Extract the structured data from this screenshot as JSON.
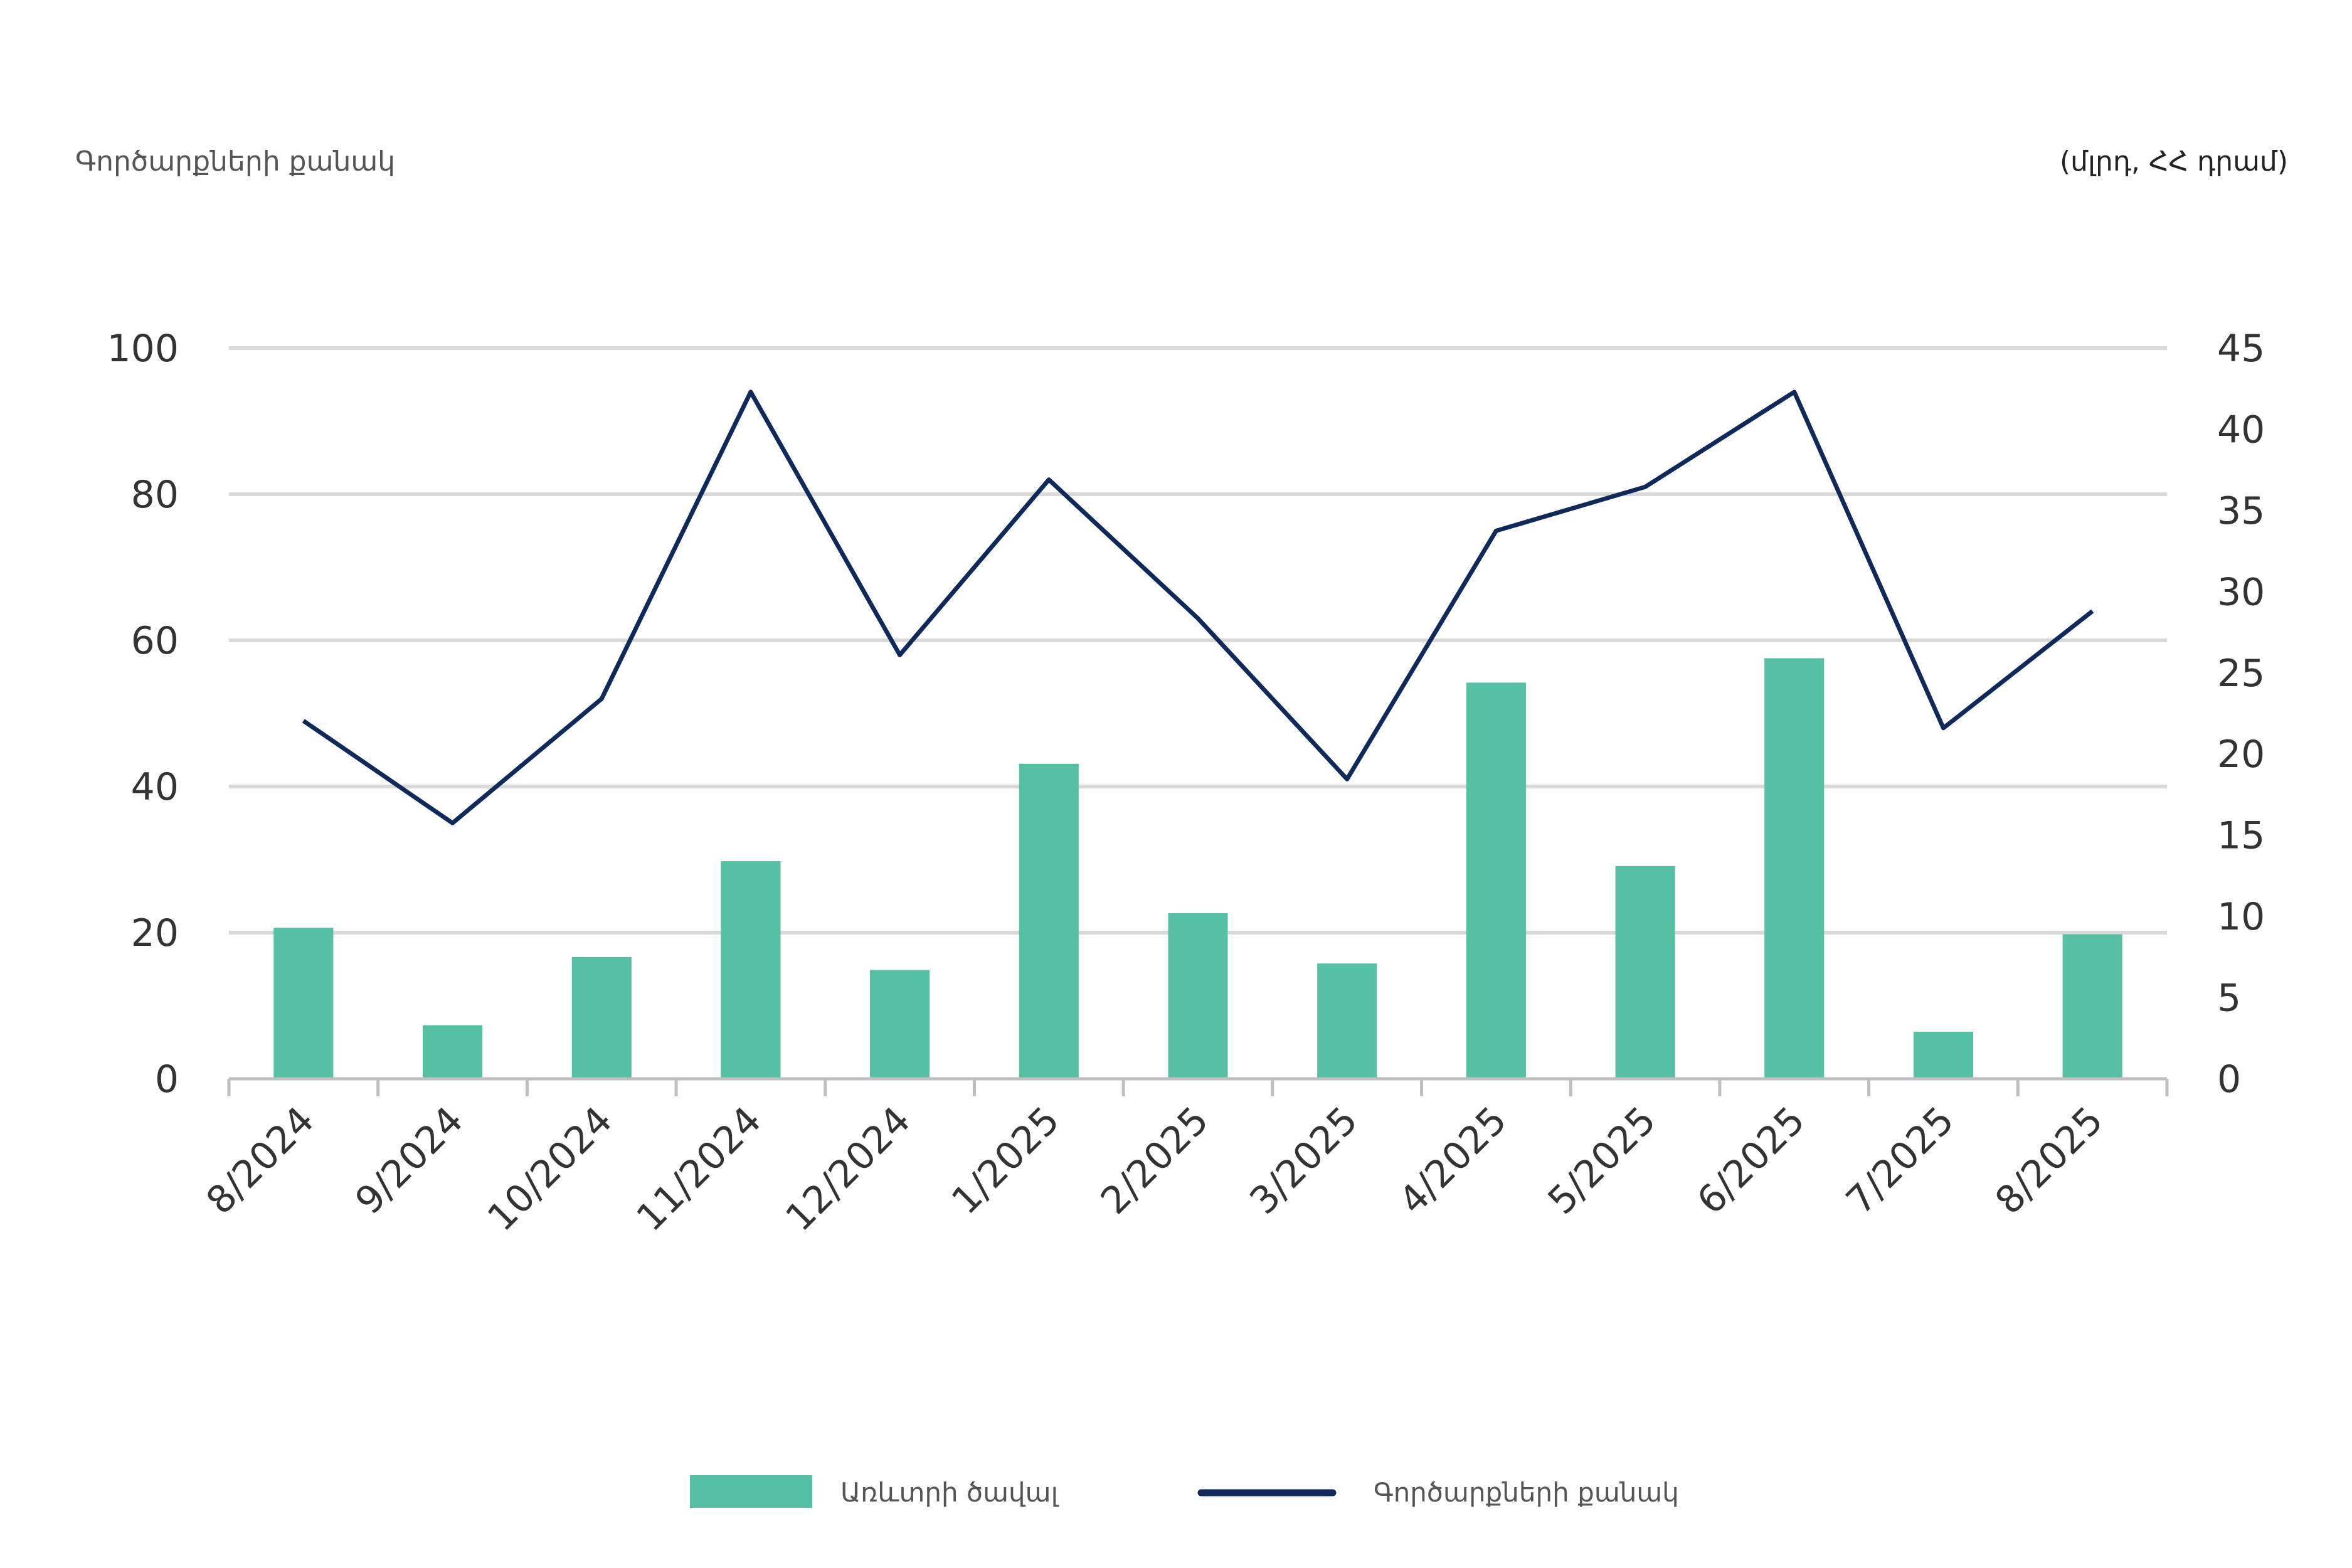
{
  "chart_data": {
    "type": "bar+line",
    "categories": [
      "8/2024",
      "9/2024",
      "10/2024",
      "11/2024",
      "12/2024",
      "1/2025",
      "2/2025",
      "3/2025",
      "4/2025",
      "5/2025",
      "6/2025",
      "7/2025",
      "8/2025"
    ],
    "series": [
      {
        "name": "Առևտրի ծավալ",
        "type": "bar",
        "axis": "right",
        "color": "#55c0a4",
        "values": [
          9.3,
          3.3,
          7.5,
          13.4,
          6.7,
          19.4,
          10.2,
          7.1,
          24.4,
          13.1,
          25.9,
          2.9,
          8.9
        ]
      },
      {
        "name": "Գործարքների քանակ",
        "type": "line",
        "axis": "left",
        "color": "#0f2a5a",
        "values": [
          49,
          35,
          52,
          94,
          58,
          82,
          63,
          41,
          75,
          81,
          94,
          48,
          64
        ]
      }
    ],
    "left_axis": {
      "title": "Գործարքների քանակ",
      "ylim": [
        0,
        100
      ],
      "ticks": [
        "0",
        "20",
        "40",
        "60",
        "80",
        "100"
      ]
    },
    "right_axis": {
      "title": "(մլրդ, ՀՀ դրամ)",
      "ylim": [
        0,
        45
      ],
      "ticks": [
        "0",
        "5",
        "10",
        "15",
        "20",
        "25",
        "30",
        "35",
        "40",
        "45"
      ]
    },
    "grid": true,
    "legend": "bottom-center"
  }
}
